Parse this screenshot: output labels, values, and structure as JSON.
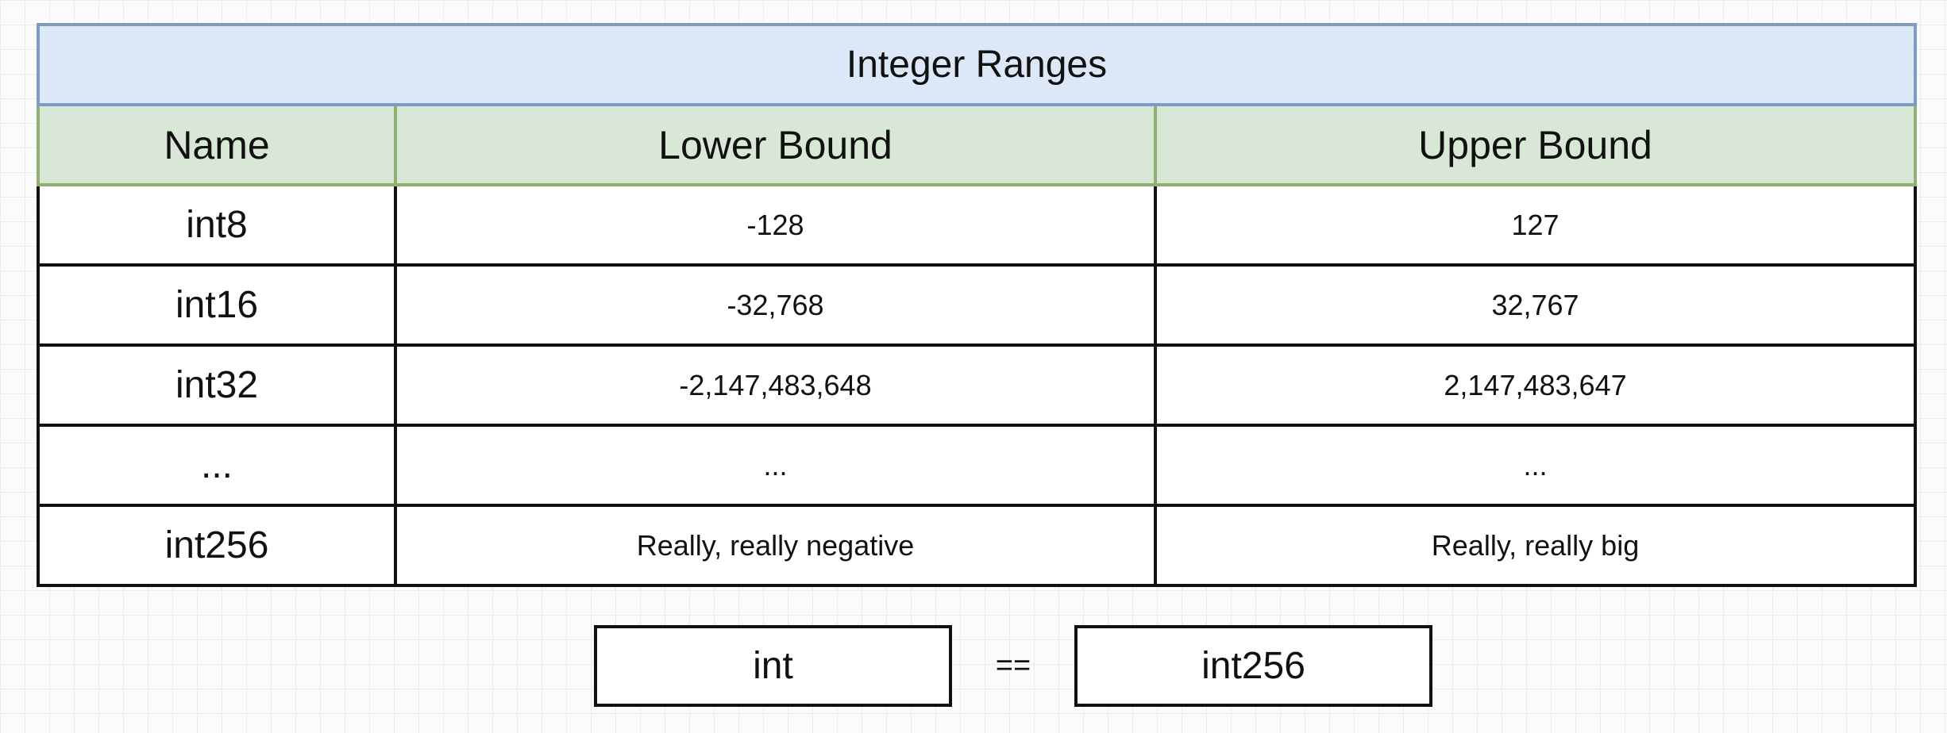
{
  "table": {
    "title": "Integer Ranges",
    "headers": {
      "name": "Name",
      "lower": "Lower Bound",
      "upper": "Upper Bound"
    },
    "rows": [
      {
        "name": "int8",
        "lower": "-128",
        "upper": "127"
      },
      {
        "name": "int16",
        "lower": "-32,768",
        "upper": "32,767"
      },
      {
        "name": "int32",
        "lower": "-2,147,483,648",
        "upper": "2,147,483,647"
      },
      {
        "name": "...",
        "lower": "...",
        "upper": "..."
      },
      {
        "name": "int256",
        "lower": "Really, really negative",
        "upper": "Really, really big"
      }
    ]
  },
  "equivalence": {
    "left": "int",
    "operator": "==",
    "right": "int256"
  },
  "colors": {
    "title_fill": "#dce7f8",
    "title_border": "#7e9bc4",
    "header_fill": "#d9e7d6",
    "header_border": "#8fb071",
    "cell_border": "#111111"
  }
}
